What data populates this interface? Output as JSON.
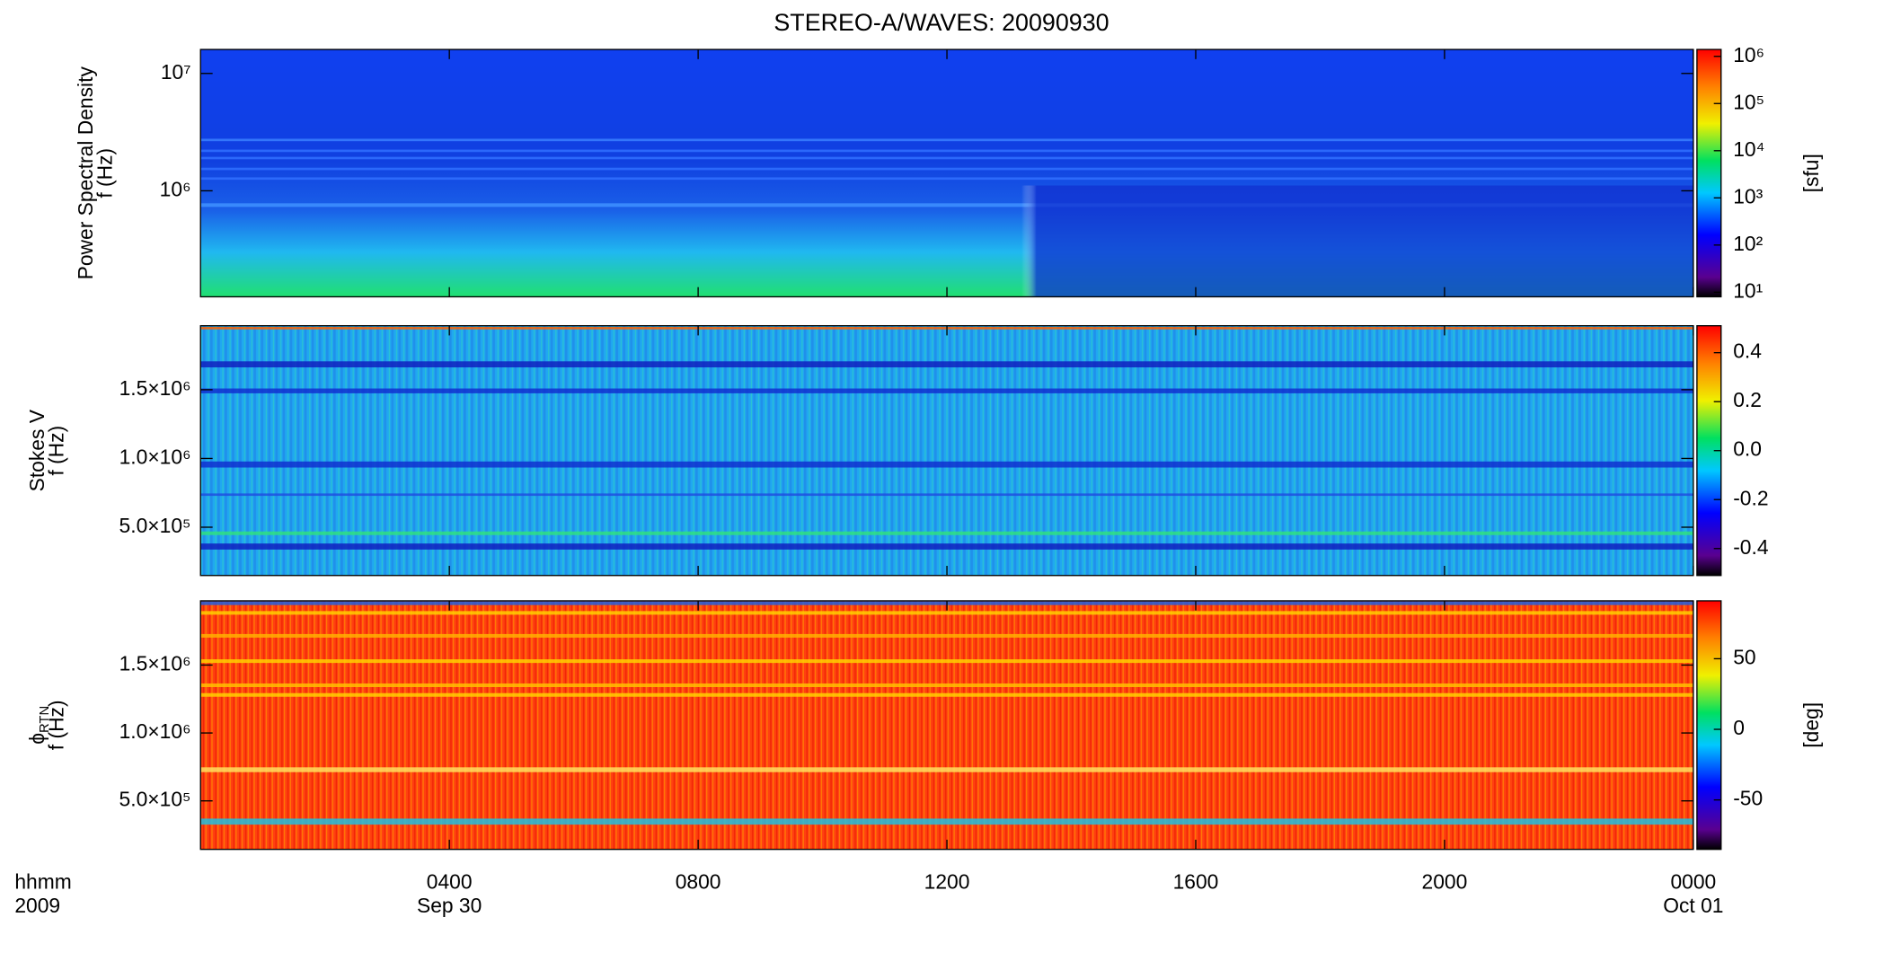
{
  "x_axis": {
    "xlim": [
      0,
      24
    ],
    "xticks": [
      {
        "value": 4,
        "label": "0400"
      },
      {
        "value": 8,
        "label": "0800"
      },
      {
        "value": 12,
        "label": "1200"
      },
      {
        "value": 16,
        "label": "1600"
      },
      {
        "value": 20,
        "label": "2000"
      },
      {
        "value": 24,
        "label": "0000"
      }
    ],
    "format_label": "hhmm",
    "year": "2009",
    "dates": [
      {
        "value": 4,
        "label": "Sep 30"
      },
      {
        "value": 24,
        "label": "Oct 01"
      }
    ]
  },
  "chart_data": [
    {
      "type": "spectrogram",
      "title": "STEREO-A/WAVES: 20090930",
      "ylabel": "Power Spectral Density",
      "ylabel2": "f (Hz)",
      "log_y": true,
      "ylim": [
        125000,
        16000000
      ],
      "yticks": [
        {
          "value": 1000000,
          "label": "10⁶"
        },
        {
          "value": 10000000,
          "label": "10⁷"
        }
      ],
      "colorbar": {
        "log": true,
        "lim": [
          8,
          1400000
        ],
        "label": "[sfu]",
        "ticks": [
          {
            "value": 10,
            "label": "10¹"
          },
          {
            "value": 100,
            "label": "10²"
          },
          {
            "value": 1000,
            "label": "10³"
          },
          {
            "value": 10000,
            "label": "10⁴"
          },
          {
            "value": 100000,
            "label": "10⁵"
          },
          {
            "value": 1000000,
            "label": "10⁶"
          }
        ]
      }
    },
    {
      "type": "spectrogram",
      "ylabel": "Stokes V",
      "ylabel2": "f (Hz)",
      "log_y": false,
      "ylim": [
        149000,
        1965000
      ],
      "yticks": [
        {
          "value": 500000,
          "label": "5.0×10⁵"
        },
        {
          "value": 1000000,
          "label": "1.0×10⁶"
        },
        {
          "value": 1500000,
          "label": "1.5×10⁶"
        }
      ],
      "colorbar": {
        "log": false,
        "lim": [
          -0.51,
          0.51
        ],
        "ticks": [
          {
            "value": -0.4,
            "label": "-0.4"
          },
          {
            "value": -0.2,
            "label": "-0.2"
          },
          {
            "value": 0,
            "label": "0.0"
          },
          {
            "value": 0.2,
            "label": "0.2"
          },
          {
            "value": 0.4,
            "label": "0.4"
          }
        ]
      }
    },
    {
      "type": "spectrogram",
      "ylabel": "ϕ",
      "ylabel_sub": "RTN",
      "ylabel2": "f (Hz)",
      "log_y": false,
      "ylim": [
        143000,
        1973000
      ],
      "yticks": [
        {
          "value": 500000,
          "label": "5.0×10⁵"
        },
        {
          "value": 1000000,
          "label": "1.0×10⁶"
        },
        {
          "value": 1500000,
          "label": "1.5×10⁶"
        }
      ],
      "colorbar": {
        "log": false,
        "lim": [
          -85,
          91
        ],
        "label": "[deg]",
        "ticks": [
          -50,
          0,
          50
        ]
      }
    }
  ]
}
